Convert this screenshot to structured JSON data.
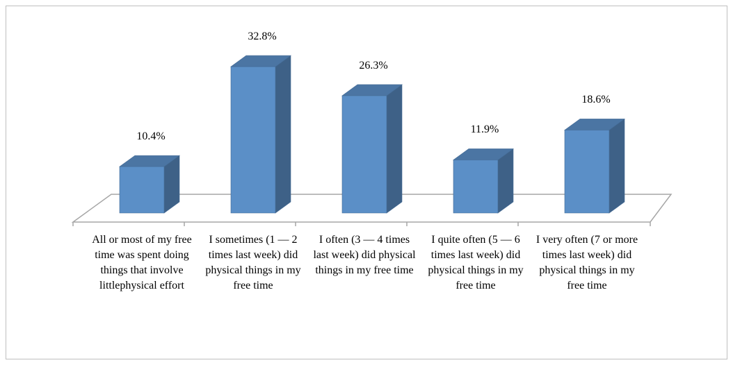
{
  "chart_data": {
    "type": "bar3d",
    "categories": [
      "All or most of my free time was spent doing things that involve littlephysical effort",
      "I sometimes (1 — 2 times last week) did physical things in my free time",
      "I often (3 — 4 times last week) did physical things in my free time",
      "I quite often (5 — 6 times last week) did physical things in my free time",
      "I very often (7 or more times last week) did physical things in my free time"
    ],
    "values": [
      10.4,
      32.8,
      26.3,
      11.9,
      18.6
    ],
    "value_labels": [
      "10.4%",
      "32.8%",
      "26.3%",
      "11.9%",
      "18.6%"
    ],
    "color": "#5b8fc7"
  }
}
